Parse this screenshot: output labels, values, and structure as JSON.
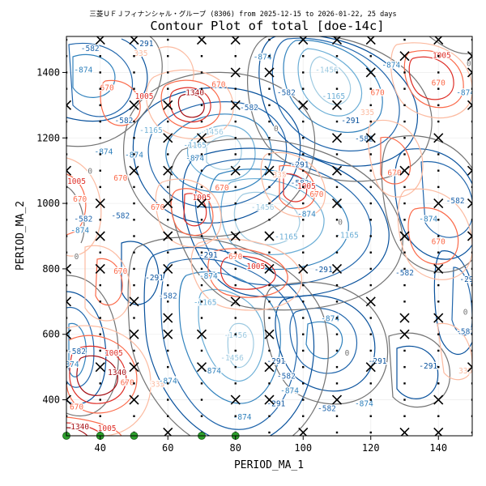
{
  "chart_data": {
    "type": "contour",
    "suptitle": "三菱ＵＦＪフィナンシャル・グループ (8306) from 2025-12-15 to 2026-01-22, 25 days",
    "title": "Contour Plot of total [doe-14c]",
    "xlabel": "PERIOD_MA_1",
    "ylabel": "PERIOD_MA_2",
    "xlim": [
      30,
      150
    ],
    "ylim": [
      290,
      1510
    ],
    "xticks": [
      40,
      60,
      80,
      100,
      120,
      140
    ],
    "yticks": [
      400,
      600,
      800,
      1000,
      1200,
      1400
    ],
    "contour_levels": [
      "-1456",
      "-1165",
      "-874",
      "-582",
      "-291",
      "0",
      "335",
      "670",
      "1005",
      "1340"
    ],
    "level_colors": {
      "-1456": "#9ecae1",
      "-1165": "#6baed6",
      "-874": "#3182bd",
      "-582": "#2166ac",
      "-291": "#08519c",
      "0": "#737373",
      "335": "#fcbba1",
      "670": "#fb6a4a",
      "1005": "#de2d26",
      "1340": "#a50f15"
    },
    "contour_labels": [
      {
        "level": "-582",
        "x": 37,
        "y": 1465
      },
      {
        "level": "-291",
        "x": 53,
        "y": 1480
      },
      {
        "level": "335",
        "x": 52,
        "y": 1450
      },
      {
        "level": "-874",
        "x": 35,
        "y": 1400
      },
      {
        "level": "670",
        "x": 42,
        "y": 1345
      },
      {
        "level": "1005",
        "x": 53,
        "y": 1320
      },
      {
        "level": "1340",
        "x": 68,
        "y": 1330
      },
      {
        "level": "670",
        "x": 75,
        "y": 1355
      },
      {
        "level": "-582",
        "x": 47,
        "y": 1245
      },
      {
        "level": "-1165",
        "x": 55,
        "y": 1215
      },
      {
        "level": "-874",
        "x": 41,
        "y": 1150
      },
      {
        "level": "-1456",
        "x": 73,
        "y": 1210
      },
      {
        "level": "-1165",
        "x": 68,
        "y": 1170
      },
      {
        "level": "-874",
        "x": 68,
        "y": 1130
      },
      {
        "level": "-582",
        "x": 84,
        "y": 1285
      },
      {
        "level": "-874",
        "x": 88,
        "y": 1440
      },
      {
        "level": "0",
        "x": 92,
        "y": 1220
      },
      {
        "level": "-582",
        "x": 95,
        "y": 1330
      },
      {
        "level": "-1165",
        "x": 109,
        "y": 1320
      },
      {
        "level": "-1456",
        "x": 107,
        "y": 1400
      },
      {
        "level": "-874",
        "x": 126,
        "y": 1415
      },
      {
        "level": "1005",
        "x": 141,
        "y": 1445
      },
      {
        "level": "670",
        "x": 140,
        "y": 1360
      },
      {
        "level": "0",
        "x": 149,
        "y": 1420
      },
      {
        "level": "-874",
        "x": 148,
        "y": 1330
      },
      {
        "level": "-291",
        "x": 114,
        "y": 1245
      },
      {
        "level": "-582",
        "x": 118,
        "y": 1190
      },
      {
        "level": "670",
        "x": 122,
        "y": 1330
      },
      {
        "level": "335",
        "x": 119,
        "y": 1270
      },
      {
        "level": "0",
        "x": 37,
        "y": 1090
      },
      {
        "level": "1005",
        "x": 33,
        "y": 1060
      },
      {
        "level": "670",
        "x": 34,
        "y": 1005
      },
      {
        "level": "-582",
        "x": 35,
        "y": 945
      },
      {
        "level": "-874",
        "x": 34,
        "y": 910
      },
      {
        "level": "0",
        "x": 33,
        "y": 830
      },
      {
        "level": "670",
        "x": 46,
        "y": 1070
      },
      {
        "level": "670",
        "x": 57,
        "y": 980
      },
      {
        "level": "-582",
        "x": 46,
        "y": 955
      },
      {
        "level": "-874",
        "x": 50,
        "y": 1140
      },
      {
        "level": "1005",
        "x": 70,
        "y": 1010
      },
      {
        "level": "670",
        "x": 76,
        "y": 1040
      },
      {
        "level": "-1456",
        "x": 88,
        "y": 980
      },
      {
        "level": "-1165",
        "x": 95,
        "y": 890
      },
      {
        "level": "-874",
        "x": 101,
        "y": 960
      },
      {
        "level": "-582",
        "x": 99,
        "y": 1055
      },
      {
        "level": "670",
        "x": 104,
        "y": 1020
      },
      {
        "level": "1005",
        "x": 101,
        "y": 1045
      },
      {
        "level": "335",
        "x": 93,
        "y": 1080
      },
      {
        "level": "-291",
        "x": 99,
        "y": 1110
      },
      {
        "level": "0",
        "x": 111,
        "y": 935
      },
      {
        "level": "-1165",
        "x": 113,
        "y": 895
      },
      {
        "level": "670",
        "x": 127,
        "y": 1085
      },
      {
        "level": "-582",
        "x": 145,
        "y": 1000
      },
      {
        "level": "-874",
        "x": 137,
        "y": 945
      },
      {
        "level": "670",
        "x": 140,
        "y": 875
      },
      {
        "level": "-291",
        "x": 149,
        "y": 760
      },
      {
        "level": "-582",
        "x": 130,
        "y": 780
      },
      {
        "level": "670",
        "x": 80,
        "y": 830
      },
      {
        "level": "1005",
        "x": 86,
        "y": 800
      },
      {
        "level": "-291",
        "x": 72,
        "y": 835
      },
      {
        "level": "-874",
        "x": 72,
        "y": 770
      },
      {
        "level": "-1165",
        "x": 71,
        "y": 690
      },
      {
        "level": "-1456",
        "x": 80,
        "y": 590
      },
      {
        "level": "-291",
        "x": 106,
        "y": 790
      },
      {
        "level": "-291",
        "x": 56,
        "y": 765
      },
      {
        "level": "670",
        "x": 46,
        "y": 785
      },
      {
        "level": "-582",
        "x": 60,
        "y": 710
      },
      {
        "level": "-874",
        "x": 108,
        "y": 640
      },
      {
        "level": "0",
        "x": 113,
        "y": 535
      },
      {
        "level": "-291",
        "x": 122,
        "y": 510
      },
      {
        "level": "-291",
        "x": 137,
        "y": 495
      },
      {
        "level": "-582",
        "x": 148,
        "y": 600
      },
      {
        "level": "335",
        "x": 148,
        "y": 480
      },
      {
        "level": "0",
        "x": 148,
        "y": 660
      },
      {
        "level": "-582",
        "x": 33,
        "y": 540
      },
      {
        "level": "-874",
        "x": 31,
        "y": 500
      },
      {
        "level": "1005",
        "x": 44,
        "y": 535
      },
      {
        "level": "1340",
        "x": 45,
        "y": 475
      },
      {
        "level": "670",
        "x": 48,
        "y": 445
      },
      {
        "level": "335",
        "x": 57,
        "y": 440
      },
      {
        "level": "-874",
        "x": 60,
        "y": 450
      },
      {
        "level": "-1456",
        "x": 79,
        "y": 520
      },
      {
        "level": "-291",
        "x": 92,
        "y": 510
      },
      {
        "level": "-582",
        "x": 95,
        "y": 465
      },
      {
        "level": "-291",
        "x": 92,
        "y": 380
      },
      {
        "level": "-582",
        "x": 107,
        "y": 365
      },
      {
        "level": "-874",
        "x": 82,
        "y": 340
      },
      {
        "level": "-874",
        "x": 73,
        "y": 480
      },
      {
        "level": "-874",
        "x": 96,
        "y": 420
      },
      {
        "level": "1340",
        "x": 34,
        "y": 310
      },
      {
        "level": "1005",
        "x": 42,
        "y": 305
      },
      {
        "level": "670",
        "x": 33,
        "y": 370
      },
      {
        "level": "-874",
        "x": 118,
        "y": 380
      }
    ],
    "x_markers": [
      [
        40,
        1500
      ],
      [
        50,
        1500
      ],
      [
        70,
        1500
      ],
      [
        80,
        1500
      ],
      [
        100,
        1500
      ],
      [
        110,
        1500
      ],
      [
        120,
        1500
      ],
      [
        140,
        1500
      ],
      [
        130,
        1450
      ],
      [
        150,
        1450
      ],
      [
        80,
        1400
      ],
      [
        90,
        1400
      ],
      [
        120,
        1400
      ],
      [
        150,
        1400
      ],
      [
        30,
        1300
      ],
      [
        50,
        1300
      ],
      [
        60,
        1300
      ],
      [
        80,
        1300
      ],
      [
        100,
        1300
      ],
      [
        110,
        1300
      ],
      [
        150,
        1300
      ],
      [
        60,
        1200
      ],
      [
        70,
        1200
      ],
      [
        110,
        1200
      ],
      [
        120,
        1200
      ],
      [
        140,
        1200
      ],
      [
        30,
        1100
      ],
      [
        50,
        1100
      ],
      [
        60,
        1100
      ],
      [
        80,
        1100
      ],
      [
        90,
        1100
      ],
      [
        110,
        1100
      ],
      [
        130,
        1100
      ],
      [
        150,
        1100
      ],
      [
        40,
        1000
      ],
      [
        60,
        1000
      ],
      [
        70,
        1000
      ],
      [
        110,
        1000
      ],
      [
        140,
        1000
      ],
      [
        150,
        1000
      ],
      [
        40,
        900
      ],
      [
        60,
        900
      ],
      [
        80,
        900
      ],
      [
        90,
        900
      ],
      [
        130,
        900
      ],
      [
        150,
        900
      ],
      [
        30,
        800
      ],
      [
        40,
        800
      ],
      [
        60,
        800
      ],
      [
        90,
        800
      ],
      [
        100,
        800
      ],
      [
        110,
        800
      ],
      [
        140,
        800
      ],
      [
        30,
        700
      ],
      [
        50,
        700
      ],
      [
        80,
        700
      ],
      [
        120,
        700
      ],
      [
        60,
        650
      ],
      [
        130,
        650
      ],
      [
        140,
        650
      ],
      [
        30,
        600
      ],
      [
        50,
        600
      ],
      [
        60,
        600
      ],
      [
        70,
        600
      ],
      [
        90,
        600
      ],
      [
        130,
        600
      ],
      [
        40,
        500
      ],
      [
        50,
        500
      ],
      [
        70,
        500
      ],
      [
        90,
        500
      ],
      [
        120,
        500
      ],
      [
        150,
        500
      ],
      [
        30,
        400
      ],
      [
        50,
        400
      ],
      [
        80,
        400
      ],
      [
        90,
        400
      ],
      [
        110,
        400
      ],
      [
        140,
        400
      ],
      [
        60,
        300
      ],
      [
        100,
        300
      ],
      [
        130,
        300
      ],
      [
        140,
        300
      ]
    ],
    "dot_markers_step": {
      "x": 10,
      "y": 50
    },
    "optimum_points": [
      [
        30,
        290
      ],
      [
        40,
        290
      ],
      [
        50,
        290
      ],
      [
        70,
        290
      ],
      [
        80,
        290
      ]
    ],
    "optimum_color": "#2ca02c"
  }
}
